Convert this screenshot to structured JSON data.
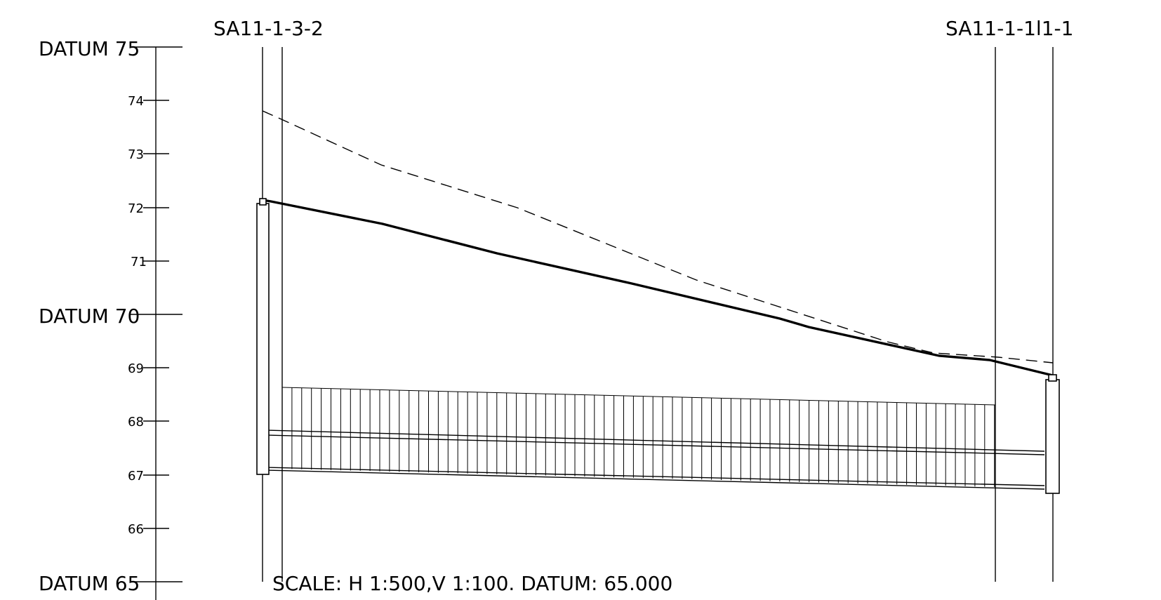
{
  "axis": {
    "major_labels": [
      "DATUM  75",
      "DATUM  70",
      "DATUM  65"
    ],
    "minor_labels": [
      "74",
      "73",
      "72",
      "71",
      "69",
      "68",
      "67",
      "66"
    ]
  },
  "manholes": {
    "left": "SA11-1-3-2",
    "right": "SA11-1-1l1-1"
  },
  "scale_note": "SCALE:  H  1:500,V  1:100.  DATUM:  65.000",
  "chart_data": {
    "type": "longitudinal-section",
    "y_axis": {
      "min": 65,
      "max": 75,
      "major_step": 5,
      "minor_step": 1
    },
    "existing_ground_dashed": [
      {
        "ch": 0,
        "level": 73.82
      },
      {
        "ch": 0.35,
        "level": 73.6
      },
      {
        "ch": 1.58,
        "level": 72.8
      },
      {
        "ch": 3.31,
        "level": 71.97
      },
      {
        "ch": 5.54,
        "level": 70.62
      },
      {
        "ch": 7.66,
        "level": 69.57
      },
      {
        "ch": 8.61,
        "level": 69.28
      },
      {
        "ch": 9.67,
        "level": 69.19
      },
      {
        "ch": 10.62,
        "level": 69.08
      }
    ],
    "finished_ground_solid": [
      {
        "ch": 0,
        "level": 72.17
      },
      {
        "ch": 0.1,
        "level": 72.15
      },
      {
        "ch": 1.6,
        "level": 71.7
      },
      {
        "ch": 3.1,
        "level": 71.15
      },
      {
        "ch": 4.9,
        "level": 70.58
      },
      {
        "ch": 6.7,
        "level": 69.97
      },
      {
        "ch": 8.3,
        "level": 69.36
      },
      {
        "ch": 9.2,
        "level": 69.21
      },
      {
        "ch": 9.7,
        "level": 69.18
      },
      {
        "ch": 10.62,
        "level": 68.85
      }
    ],
    "pipe": {
      "crown_upper": [
        67.85,
        67.44
      ],
      "crown_lower": [
        67.76,
        67.37
      ],
      "invert_upper": [
        67.13,
        66.78
      ],
      "invert_lower": [
        67.08,
        66.72
      ]
    },
    "trench_fill": {
      "top": [
        68.64,
        68.31
      ],
      "bottom": [
        67.13,
        66.78
      ],
      "start_ch": 0.26,
      "end_ch": 9.81
    },
    "manholes": [
      {
        "name": "SA11-1-3-2",
        "top": 72.17,
        "bottom": 67.0,
        "ch": 0
      },
      {
        "name": "SA11-1-1l1-1",
        "top": 68.85,
        "bottom": 66.62,
        "ch": 10.62
      }
    ]
  }
}
